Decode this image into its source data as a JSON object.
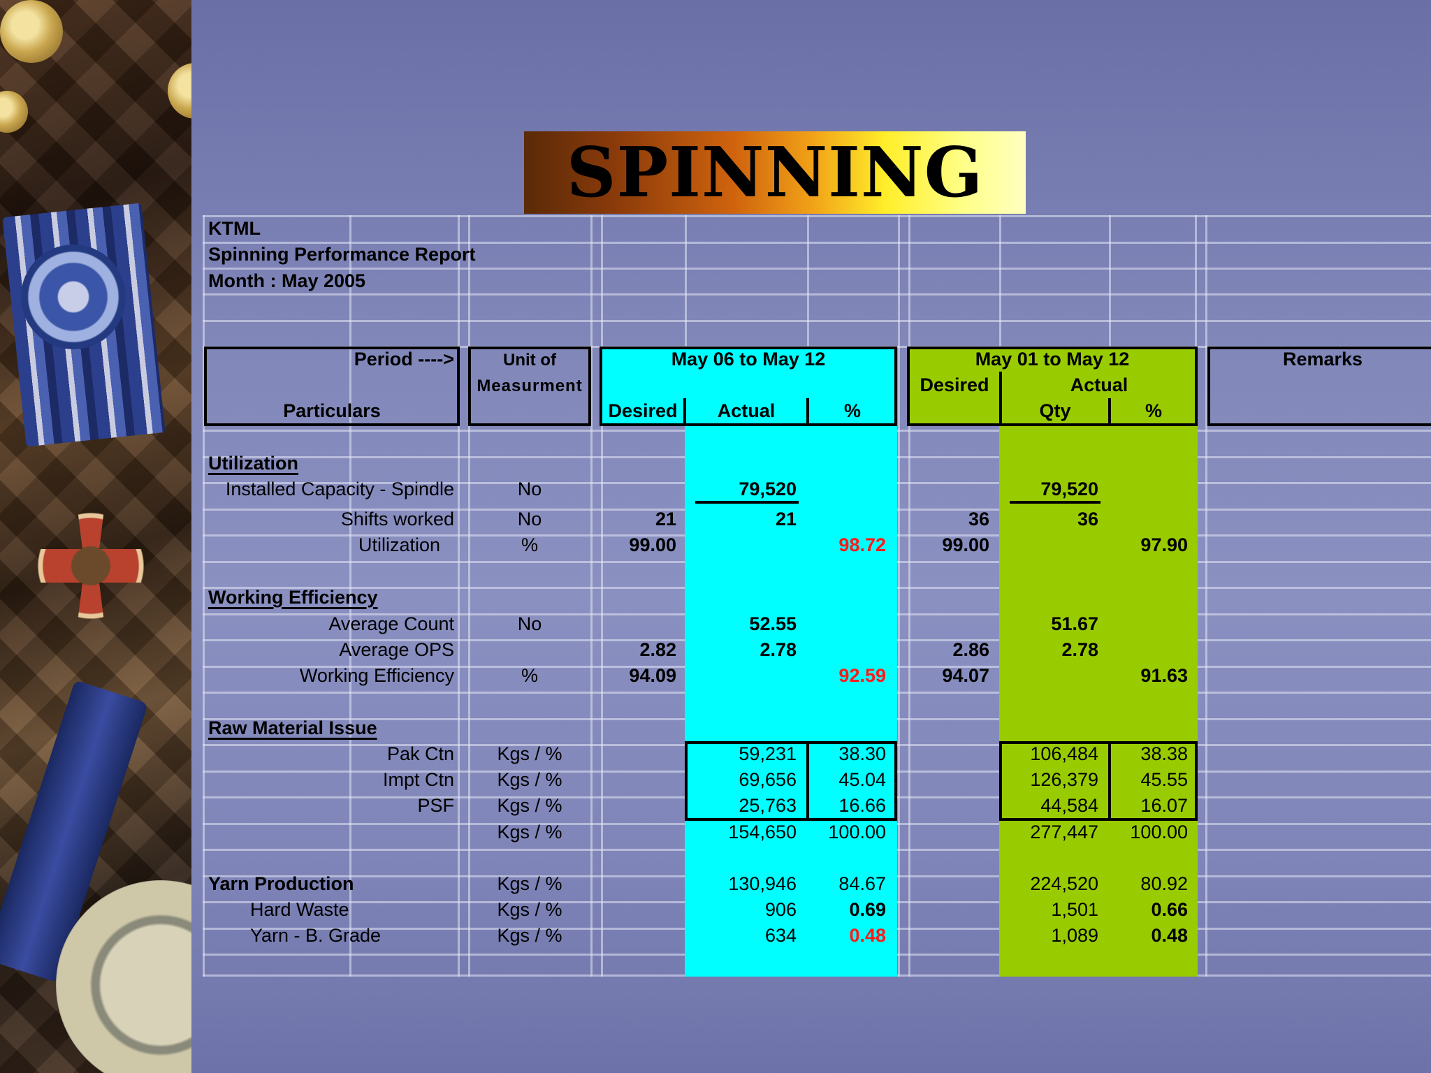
{
  "banner": {
    "title": "SPINNING"
  },
  "report": {
    "company": "KTML",
    "title": "Spinning Performance Report",
    "month": "Month : May 2005"
  },
  "header": {
    "period_label": "Period ---->",
    "particulars_label": "Particulars",
    "unit_line1": "Unit of",
    "unit_line2": "Measurment",
    "period1": {
      "label": "May 06 to May 12",
      "desired": "Desired",
      "actual": "Actual",
      "pct": "%"
    },
    "period2": {
      "label": "May 01 to May 12",
      "desired": "Desired",
      "actual": "Actual",
      "qty": "Qty",
      "pct": "%"
    },
    "remarks": "Remarks"
  },
  "sections": {
    "utilization": "Utilization",
    "working_efficiency": "Working Efficiency",
    "raw_material": "Raw Material Issue",
    "yarn_production": "Yarn Production"
  },
  "rows": {
    "installed": {
      "label": "Installed Capacity - Spindle",
      "unit": "No",
      "p1_actual": "79,520",
      "p2_actual": "79,520"
    },
    "shifts": {
      "label": "Shifts worked",
      "unit": "No",
      "p1_desired": "21",
      "p1_actual": "21",
      "p2_desired": "36",
      "p2_actual": "36"
    },
    "utilization": {
      "label": "Utilization",
      "unit": "%",
      "p1_desired": "99.00",
      "p1_pct": "98.72",
      "p2_desired": "99.00",
      "p2_pct": "97.90"
    },
    "avg_count": {
      "label": "Average Count",
      "unit": "No",
      "p1_actual": "52.55",
      "p2_actual": "51.67"
    },
    "avg_ops": {
      "label": "Average OPS",
      "p1_desired": "2.82",
      "p1_actual": "2.78",
      "p2_desired": "2.86",
      "p2_actual": "2.78"
    },
    "work_eff": {
      "label": "Working Efficiency",
      "unit": "%",
      "p1_desired": "94.09",
      "p1_pct": "92.59",
      "p2_desired": "94.07",
      "p2_pct": "91.63"
    },
    "pak": {
      "label": "Pak Ctn",
      "unit": "Kgs / %",
      "p1_actual": "59,231",
      "p1_pct": "38.30",
      "p2_actual": "106,484",
      "p2_pct": "38.38"
    },
    "impt": {
      "label": "Impt Ctn",
      "unit": "Kgs / %",
      "p1_actual": "69,656",
      "p1_pct": "45.04",
      "p2_actual": "126,379",
      "p2_pct": "45.55"
    },
    "psf": {
      "label": "PSF",
      "unit": "Kgs / %",
      "p1_actual": "25,763",
      "p1_pct": "16.66",
      "p2_actual": "44,584",
      "p2_pct": "16.07"
    },
    "rm_total": {
      "unit": "Kgs / %",
      "p1_actual": "154,650",
      "p1_pct": "100.00",
      "p2_actual": "277,447",
      "p2_pct": "100.00"
    },
    "yarn": {
      "unit": "Kgs / %",
      "p1_actual": "130,946",
      "p1_pct": "84.67",
      "p2_actual": "224,520",
      "p2_pct": "80.92"
    },
    "hard_waste": {
      "label": "Hard Waste",
      "unit": "Kgs / %",
      "p1_actual": "906",
      "p1_pct": "0.69",
      "p2_actual": "1,501",
      "p2_pct": "0.66"
    },
    "b_grade": {
      "label": "Yarn - B. Grade",
      "unit": "Kgs / %",
      "p1_actual": "634",
      "p1_pct": "0.48",
      "p2_actual": "1,089",
      "p2_pct": "0.48"
    }
  },
  "colors": {
    "period1": "#00ffff",
    "period2": "#99cc00",
    "highlight": "#ff1a1a"
  }
}
